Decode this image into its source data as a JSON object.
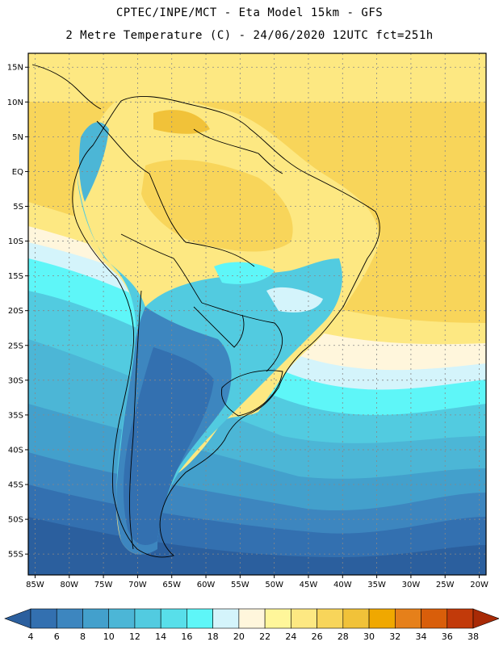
{
  "header": {
    "line1": "CPTEC/INPE/MCT -  Eta Model 15km - GFS",
    "line2": "2 Metre Temperature (C) - 24/06/2020 12UTC fct=251h"
  },
  "axes": {
    "lat_labels": [
      "15N",
      "10N",
      "5N",
      "EQ",
      "5S",
      "10S",
      "15S",
      "20S",
      "25S",
      "30S",
      "35S",
      "40S",
      "45S",
      "50S",
      "55S"
    ],
    "lon_labels": [
      "85W",
      "80W",
      "75W",
      "70W",
      "65W",
      "60W",
      "55W",
      "50W",
      "45W",
      "40W",
      "35W",
      "30W",
      "25W",
      "20W"
    ],
    "lat_range": [
      17,
      -58
    ],
    "lon_range": [
      -86,
      -19
    ]
  },
  "colorbar": {
    "labels": [
      "4",
      "6",
      "8",
      "10",
      "12",
      "14",
      "16",
      "18",
      "20",
      "22",
      "24",
      "26",
      "28",
      "30",
      "32",
      "34",
      "36",
      "38"
    ],
    "colors": [
      "#2b5f9e",
      "#3370b0",
      "#3d86bf",
      "#43a0cc",
      "#4cb6d6",
      "#52cbe0",
      "#58dfea",
      "#5ef6f8",
      "#d4f4fb",
      "#fff6dc",
      "#fff69a",
      "#fde882",
      "#f8d55a",
      "#f1c239",
      "#f0a800",
      "#e6801a",
      "#d95e0a",
      "#c23a0a",
      "#a82a06"
    ]
  },
  "colors": {
    "ocean_deep": "#2b5f9e",
    "land_warm": "#fdeaa0",
    "border": "#000000",
    "grid": "#888888"
  },
  "field": {
    "note_zones": [
      {
        "range": "30-32",
        "color": "#f1c239"
      },
      {
        "range": "24-26",
        "color": "#fff69a"
      },
      {
        "range": "16-18",
        "color": "#58dfea"
      },
      {
        "range": "4-6",
        "color": "#2b5f9e"
      }
    ]
  }
}
